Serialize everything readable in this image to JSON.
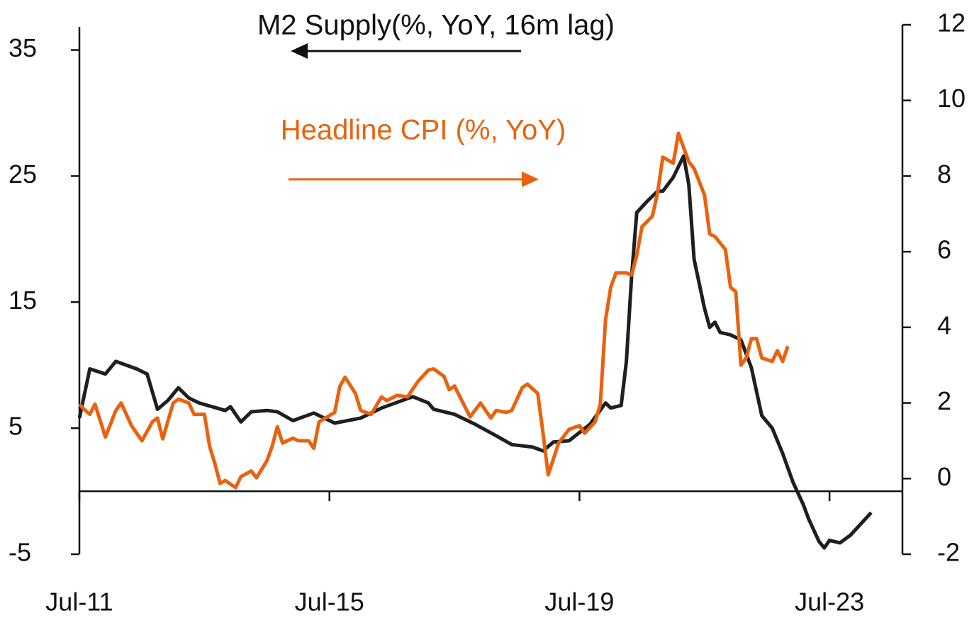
{
  "chart_data": {
    "type": "line",
    "xticks": [
      "Jul-11",
      "Jul-15",
      "Jul-19",
      "Jul-23"
    ],
    "xlim": [
      "Jul-11",
      "Sep-24"
    ],
    "ylim": [
      -5,
      37
    ],
    "yticks": [
      -5,
      5,
      15,
      25,
      35
    ],
    "y2lim": [
      -2,
      12
    ],
    "y2ticks": [
      -2,
      0,
      2,
      4,
      6,
      8,
      10,
      12
    ],
    "grid": false,
    "series": [
      {
        "name": "M2 Supply(%, YoY, 16m lag)",
        "color": "#1f1f1f",
        "axis": "y",
        "x": [
          "Jul-11",
          "Sep-11",
          "Dec-11",
          "Feb-12",
          "Jun-12",
          "Aug-12",
          "Oct-12",
          "Dec-12",
          "Feb-13",
          "Apr-13",
          "Jun-13",
          "Nov-13",
          "Dec-13",
          "Feb-14",
          "Apr-14",
          "Jul-14",
          "Sep-14",
          "Dec-14",
          "Apr-15",
          "Aug-15",
          "Jan-16",
          "May-16",
          "Nov-16",
          "Feb-17",
          "Mar-17",
          "Jul-17",
          "Nov-17",
          "Mar-18",
          "Jun-18",
          "Oct-18",
          "Dec-18",
          "Feb-19",
          "May-19",
          "Sep-19",
          "Dec-19",
          "Jan-20",
          "Mar-20",
          "Apr-20",
          "May-20",
          "Jun-20",
          "Aug-20",
          "Oct-20",
          "Nov-20",
          "Jan-21",
          "Mar-21",
          "Apr-21",
          "May-21",
          "Jul-21",
          "Aug-21",
          "Sep-21",
          "Oct-21",
          "Dec-21",
          "Feb-22",
          "Apr-22",
          "Jun-22",
          "Aug-22",
          "Oct-22",
          "Dec-22",
          "Feb-23",
          "Mar-23",
          "May-23",
          "Jun-23",
          "Jul-23",
          "Sep-23",
          "Nov-23",
          "Jan-24",
          "Mar-24"
        ],
        "values": [
          5.8,
          9.7,
          9.3,
          10.3,
          9.7,
          9.3,
          6.5,
          7.2,
          8.2,
          7.4,
          7.0,
          6.4,
          6.7,
          5.5,
          6.3,
          6.4,
          6.3,
          5.6,
          6.2,
          5.4,
          5.8,
          6.6,
          7.5,
          7.0,
          6.5,
          6.1,
          5.3,
          4.4,
          3.7,
          3.5,
          3.2,
          3.9,
          4.0,
          5.3,
          7.0,
          6.6,
          6.8,
          10.3,
          17.0,
          22.1,
          23.0,
          23.8,
          23.8,
          24.9,
          26.6,
          24.3,
          18.4,
          14.5,
          13.0,
          13.4,
          12.6,
          12.4,
          12.0,
          9.8,
          6.0,
          5.0,
          3.0,
          0.7,
          -1.1,
          -2.2,
          -4.0,
          -4.5,
          -3.9,
          -4.1,
          -3.5,
          -2.6,
          -1.7
        ]
      },
      {
        "name": "Headline CPI (%, YoY)",
        "color": "#e8620f",
        "axis": "y2",
        "x": [
          "Jul-11",
          "Aug-11",
          "Sep-11",
          "Oct-11",
          "Dec-11",
          "Feb-12",
          "Mar-12",
          "May-12",
          "Jul-12",
          "Sep-12",
          "Oct-12",
          "Nov-12",
          "Jan-13",
          "Feb-13",
          "Apr-13",
          "May-13",
          "Jul-13",
          "Aug-13",
          "Sep-13",
          "Oct-13",
          "Nov-13",
          "Jan-14",
          "Feb-14",
          "Apr-14",
          "May-14",
          "Jul-14",
          "Aug-14",
          "Sep-14",
          "Oct-14",
          "Dec-14",
          "Jan-15",
          "Mar-15",
          "Apr-15",
          "May-15",
          "Aug-15",
          "Sep-15",
          "Oct-15",
          "Dec-15",
          "Jan-16",
          "Mar-16",
          "May-16",
          "Jun-16",
          "Aug-16",
          "Oct-16",
          "Dec-16",
          "Feb-17",
          "Mar-17",
          "May-17",
          "Jun-17",
          "Jul-17",
          "Oct-17",
          "Dec-17",
          "Feb-18",
          "Mar-18",
          "May-18",
          "Jun-18",
          "Aug-18",
          "Sep-18",
          "Nov-18",
          "Dec-18",
          "Jan-19",
          "Mar-19",
          "May-19",
          "Jul-19",
          "Aug-19",
          "Oct-19",
          "Nov-19",
          "Dec-19",
          "Jan-20",
          "Feb-20",
          "Apr-20",
          "May-20",
          "Jun-20",
          "Jul-20",
          "Sep-20",
          "Oct-20",
          "Nov-20",
          "Jan-21",
          "Feb-21",
          "Apr-21",
          "May-21",
          "Jul-21",
          "Aug-21",
          "Sep-21",
          "Nov-21",
          "Dec-21",
          "Jan-22",
          "Feb-22",
          "Mar-22",
          "Apr-22",
          "May-22",
          "Jun-22",
          "Aug-22",
          "Sep-22",
          "Oct-22",
          "Nov-22"
        ],
        "values": [
          1.97,
          1.82,
          1.7,
          1.97,
          1.1,
          1.8,
          2.0,
          1.4,
          1.0,
          1.5,
          1.6,
          1.05,
          2.0,
          2.1,
          2.0,
          1.7,
          1.7,
          0.85,
          0.4,
          -0.13,
          -0.05,
          -0.24,
          0.05,
          0.2,
          0.02,
          0.47,
          0.85,
          1.37,
          0.94,
          1.07,
          1.0,
          1.0,
          0.8,
          1.5,
          1.75,
          2.44,
          2.68,
          2.25,
          1.8,
          1.7,
          2.16,
          2.06,
          2.2,
          2.16,
          2.57,
          2.87,
          2.9,
          2.7,
          2.35,
          2.45,
          1.63,
          2.0,
          1.6,
          1.8,
          1.75,
          1.8,
          2.4,
          2.5,
          2.25,
          1.2,
          0.1,
          0.94,
          1.3,
          1.4,
          1.2,
          1.5,
          1.97,
          4.2,
          5.06,
          5.44,
          5.44,
          5.38,
          5.9,
          6.66,
          6.94,
          7.56,
          8.5,
          8.34,
          9.13,
          8.38,
          8.2,
          7.5,
          6.47,
          6.4,
          6.06,
          5.06,
          4.94,
          3.0,
          3.19,
          3.7,
          3.7,
          3.19,
          3.1,
          3.38,
          3.1,
          3.5
        ]
      }
    ]
  }
}
